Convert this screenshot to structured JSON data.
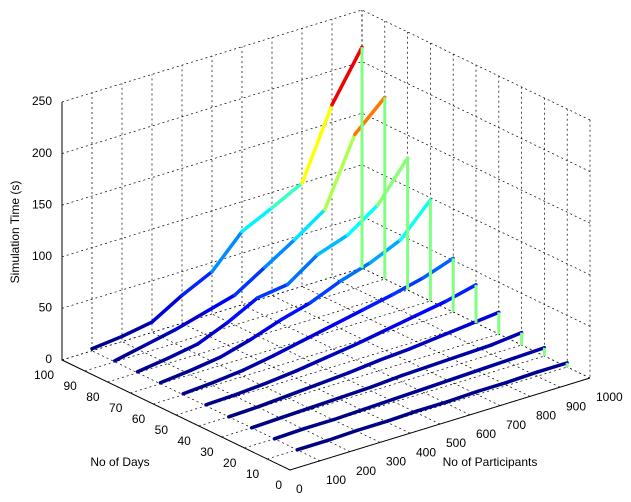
{
  "chart_data": {
    "type": "line3d",
    "xlabel": "No of Participants",
    "ylabel": "No of Days",
    "zlabel": "Simulation Time (s)",
    "x": [
      100,
      200,
      300,
      400,
      500,
      600,
      700,
      800,
      900,
      1000
    ],
    "y": [
      10,
      20,
      30,
      40,
      50,
      60,
      70,
      80,
      90,
      100
    ],
    "series": [
      {
        "values": [
          0,
          0,
          1,
          1,
          2,
          2,
          3,
          3,
          4,
          4
        ]
      },
      {
        "values": [
          0,
          1,
          1,
          2,
          3,
          4,
          5,
          6,
          7,
          8
        ]
      },
      {
        "values": [
          0,
          1,
          2,
          3,
          4,
          6,
          7,
          8,
          9,
          12
        ]
      },
      {
        "values": [
          0,
          1,
          3,
          5,
          7,
          10,
          12,
          15,
          18,
          21
        ]
      },
      {
        "values": [
          1,
          2,
          4,
          7,
          11,
          15,
          20,
          25,
          30,
          37
        ]
      },
      {
        "values": [
          1,
          3,
          6,
          11,
          17,
          23,
          29,
          35,
          42,
          52
        ]
      },
      {
        "values": [
          1,
          4,
          8,
          16,
          26,
          34,
          46,
          55,
          68,
          98
        ]
      },
      {
        "values": [
          1,
          5,
          10,
          22,
          37,
          41,
          61,
          71,
          91,
          128
        ]
      },
      {
        "values": [
          1,
          7,
          13,
          21,
          29,
          47,
          65,
          85,
          149,
          176
        ]
      },
      {
        "values": [
          2,
          5,
          10,
          27,
          41,
          71,
          85,
          100,
          167,
          214
        ]
      }
    ],
    "xlim": [
      0,
      1000
    ],
    "ylim": [
      0,
      100
    ],
    "zlim": [
      0,
      250
    ],
    "xticks": [
      0,
      100,
      200,
      300,
      400,
      500,
      600,
      700,
      800,
      900,
      1000
    ],
    "yticks": [
      0,
      10,
      20,
      30,
      40,
      50,
      60,
      70,
      80,
      90,
      100
    ],
    "zticks": [
      0,
      50,
      100,
      150,
      200,
      250
    ],
    "grid": true,
    "colormap": "jet",
    "edge_color": "#80ff80"
  }
}
